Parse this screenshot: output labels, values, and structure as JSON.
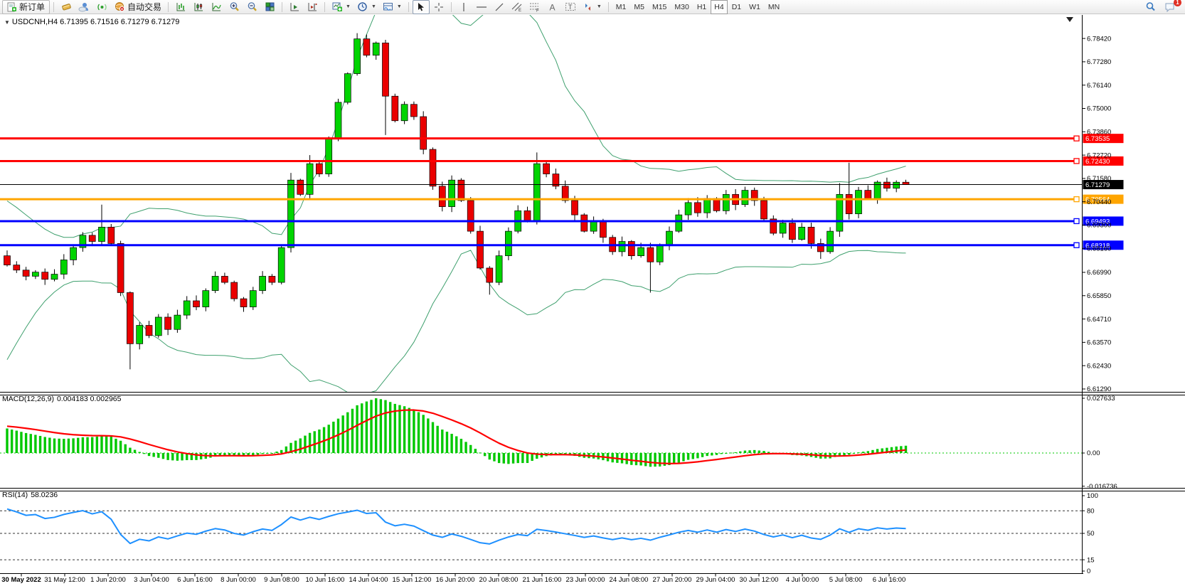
{
  "toolbar": {
    "new_order_label": "新订单",
    "autotrade_label": "自动交易",
    "timeframes": [
      "M1",
      "M5",
      "M15",
      "M30",
      "H1",
      "H4",
      "D1",
      "W1",
      "MN"
    ],
    "active_timeframe": "H4",
    "notification_count": "1"
  },
  "chart_header": {
    "symbol_period": "USDCNH,H4",
    "ohlc_quote": "6.71395 6.71516 6.71279 6.71279"
  },
  "panels": {
    "macd": {
      "title": "MACD(12,26,9)",
      "values": "0.004183 0.002965",
      "axis": [
        "0.027633",
        "0.00",
        "-0.016736"
      ]
    },
    "rsi": {
      "title": "RSI(14)",
      "value": "58.0236",
      "axis": [
        "100",
        "80",
        "50",
        "15",
        "0"
      ],
      "dashed_levels": [
        80,
        50,
        15
      ]
    }
  },
  "chart_data": {
    "type": "candlestick+indicators",
    "symbol": "USDCNH",
    "period": "H4",
    "price_axis_ticks": [
      "6.78420",
      "6.77280",
      "6.76140",
      "6.75000",
      "6.73860",
      "6.72720",
      "6.71580",
      "6.70440",
      "6.69300",
      "6.68160",
      "6.66990",
      "6.65850",
      "6.64710",
      "6.63570",
      "6.62430",
      "6.61290"
    ],
    "y_axis": {
      "price_top": 6.7957,
      "price_bottom": 6.6115
    },
    "time_labels": [
      "30 May 2022",
      "31 May 12:00",
      "1 Jun 20:00",
      "3 Jun 04:00",
      "6 Jun 16:00",
      "8 Jun 00:00",
      "9 Jun 08:00",
      "10 Jun 16:00",
      "14 Jun 04:00",
      "15 Jun 12:00",
      "16 Jun 20:00",
      "20 Jun 08:00",
      "21 Jun 16:00",
      "23 Jun 00:00",
      "24 Jun 08:00",
      "27 Jun 20:00",
      "29 Jun 04:00",
      "30 Jun 12:00",
      "4 Jul 00:00",
      "5 Jul 08:00",
      "6 Jul 16:00"
    ],
    "first_open": 6.678,
    "pre_closes": [
      6.616,
      6.622,
      6.628,
      6.635,
      6.642,
      6.65,
      6.657,
      6.664,
      6.67,
      6.676,
      6.68,
      6.683,
      6.684,
      6.683,
      6.681,
      6.68,
      6.679,
      6.678,
      6.677,
      6.678
    ],
    "closes": [
      6.6735,
      6.671,
      6.668,
      6.67,
      6.6665,
      6.669,
      6.676,
      6.682,
      6.688,
      6.685,
      6.692,
      6.684,
      6.66,
      6.635,
      6.644,
      6.639,
      6.648,
      6.642,
      6.649,
      6.656,
      6.653,
      6.661,
      6.668,
      6.665,
      6.657,
      6.653,
      6.661,
      6.668,
      6.665,
      6.682,
      6.715,
      6.708,
      6.723,
      6.718,
      6.735,
      6.753,
      6.767,
      6.784,
      6.776,
      6.782,
      6.756,
      6.744,
      6.752,
      6.746,
      6.73,
      6.712,
      6.702,
      6.715,
      6.705,
      6.69,
      6.672,
      6.665,
      6.678,
      6.69,
      6.7,
      6.695,
      6.723,
      6.718,
      6.712,
      6.705,
      6.698,
      6.69,
      6.695,
      6.687,
      6.68,
      6.685,
      6.678,
      6.682,
      6.675,
      6.683,
      6.69,
      6.698,
      6.704,
      6.699,
      6.706,
      6.7,
      6.708,
      6.703,
      6.71,
      6.705,
      6.696,
      6.689,
      6.694,
      6.686,
      6.692,
      6.684,
      6.68,
      6.69,
      6.708,
      6.6985,
      6.71,
      6.706,
      6.714,
      6.711,
      6.71395,
      6.71279
    ],
    "overrides": {
      "10": {
        "high": 6.703
      },
      "13": {
        "low": 6.6225
      },
      "30": {
        "high": 6.7185
      },
      "32": {
        "high": 6.7272
      },
      "37": {
        "high": 6.7868
      },
      "40": {
        "low": 6.737
      },
      "51": {
        "low": 6.659
      },
      "56": {
        "high": 6.7285
      },
      "68": {
        "low": 6.66
      },
      "86": {
        "low": 6.6765
      },
      "88": {
        "high": 6.7135
      },
      "89": {
        "high": 6.7235
      },
      "95": {
        "open": 6.71395,
        "high": 6.71516,
        "low": 6.71279,
        "close": 6.71279
      }
    },
    "hlines": [
      {
        "price": 6.73535,
        "label": "6.73535",
        "color": "#FF0000",
        "width": 3
      },
      {
        "price": 6.7243,
        "label": "6.72430",
        "color": "#FF0000",
        "width": 3
      },
      {
        "price": 6.71279,
        "label": "6.71279",
        "color": "#000000",
        "width": 1
      },
      {
        "price": 6.70564,
        "label": "6.70564",
        "color": "#FFA500",
        "width": 3
      },
      {
        "price": 6.69493,
        "label": "6.69493",
        "color": "#0000FF",
        "width": 3
      },
      {
        "price": 6.68318,
        "label": "6.68318",
        "color": "#0000FF",
        "width": 3
      }
    ],
    "indicators": {
      "bollinger": {
        "period": 20,
        "deviation": 2
      },
      "macd": {
        "fast": 12,
        "slow": 26,
        "signal": 9,
        "axis_max": 0.027633,
        "axis_min": -0.016736
      },
      "rsi": {
        "period": 14
      }
    },
    "colors": {
      "bull": "#00D400",
      "bear": "#EA0000",
      "wick": "#000000",
      "candle_border": "#000000",
      "band": "#3FA06E",
      "macd_hist": "#00C800",
      "macd_signal": "#FF0000",
      "rsi_line": "#1E90FF",
      "axis_text": "#000000",
      "panel_border": "#000000"
    }
  }
}
